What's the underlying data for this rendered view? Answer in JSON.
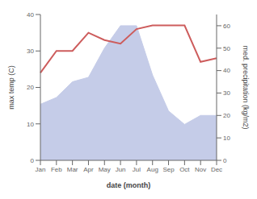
{
  "chart_data": {
    "type": "line",
    "xlabel": "date (month)",
    "ylabel": "max temp (C)",
    "y2label": "med. precipitation (kg/m2)",
    "categories": [
      "Jan",
      "Feb",
      "Mar",
      "Apr",
      "May",
      "Jun",
      "Jul",
      "Aug",
      "Sep",
      "Oct",
      "Nov",
      "Dec"
    ],
    "series": [
      {
        "type": "area",
        "axis": "y2",
        "color": "#c5cce8",
        "values": [
          25,
          28,
          35,
          37,
          50,
          60,
          60,
          38,
          22,
          16,
          20,
          20
        ]
      },
      {
        "type": "line",
        "axis": "y",
        "color": "#cd5c5c",
        "values": [
          24,
          30,
          30,
          35,
          33,
          32,
          36,
          37,
          37,
          37,
          27,
          28
        ]
      }
    ],
    "ylim": [
      0,
      40
    ],
    "yticks": [
      0,
      10,
      20,
      30,
      40
    ],
    "y2lim": [
      0,
      65
    ],
    "y2ticks": [
      0,
      10,
      20,
      30,
      40,
      50,
      60
    ],
    "grid": false
  }
}
